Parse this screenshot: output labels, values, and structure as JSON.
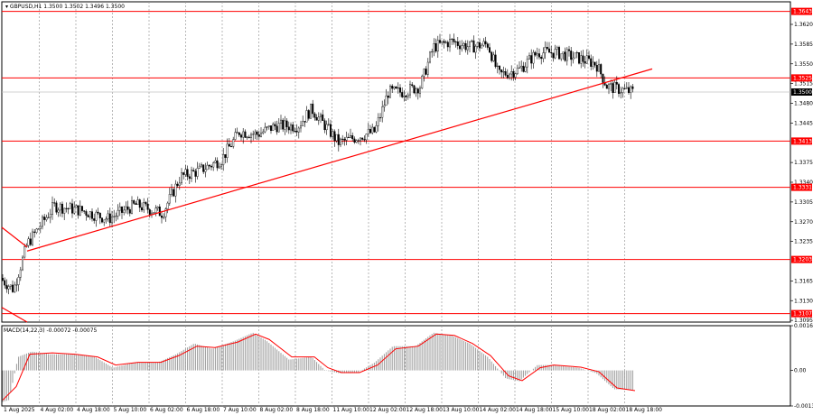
{
  "chart_data": [
    {
      "type": "candlestick",
      "header": "GBPUSD,H1  1.3500 1.3502 1.3496 1.3500",
      "x_tick_labels": [
        "1 Aug 2025",
        "4 Aug 02:00",
        "4 Aug 18:00",
        "5 Aug 10:00",
        "6 Aug 02:00",
        "6 Aug 18:00",
        "7 Aug 10:00",
        "8 Aug 02:00",
        "8 Aug 18:00",
        "11 Aug 10:00",
        "12 Aug 02:00",
        "12 Aug 18:00",
        "13 Aug 10:00",
        "14 Aug 02:00",
        "14 Aug 18:00",
        "15 Aug 10:00",
        "18 Aug 02:00",
        "18 Aug 18:00"
      ],
      "y_tick_labels": [
        "1.3620",
        "1.3585",
        "1.3550",
        "1.3515",
        "1.3480",
        "1.3445",
        "1.3375",
        "1.3340",
        "1.3305",
        "1.3270",
        "1.3235",
        "1.3165",
        "1.3130",
        "1.3095"
      ],
      "ylim": [
        1.3092,
        1.366
      ],
      "current_price": "1.3500",
      "levels": [
        {
          "value": 1.3643,
          "label": "1.3643"
        },
        {
          "value": 1.3525,
          "label": "1.3525"
        },
        {
          "value": 1.3413,
          "label": "1.3413"
        },
        {
          "value": 1.3331,
          "label": "1.3331"
        },
        {
          "value": 1.3203,
          "label": "1.3203"
        },
        {
          "value": 1.3107,
          "label": "1.3107"
        }
      ],
      "trendlines": [
        {
          "from": [
            28,
            1.3218
          ],
          "to": [
            720,
            1.3541
          ]
        },
        {
          "from": [
            0,
            1.326
          ],
          "to": [
            28,
            1.3225
          ]
        }
      ],
      "close_path": [
        [
          0,
          1.317
        ],
        [
          15,
          1.315
        ],
        [
          30,
          1.323
        ],
        [
          60,
          1.3298
        ],
        [
          90,
          1.329
        ],
        [
          120,
          1.3275
        ],
        [
          150,
          1.33
        ],
        [
          180,
          1.3285
        ],
        [
          200,
          1.335
        ],
        [
          220,
          1.336
        ],
        [
          245,
          1.338
        ],
        [
          265,
          1.343
        ],
        [
          285,
          1.3425
        ],
        [
          305,
          1.344
        ],
        [
          330,
          1.344
        ],
        [
          345,
          1.347
        ],
        [
          360,
          1.344
        ],
        [
          375,
          1.341
        ],
        [
          395,
          1.342
        ],
        [
          415,
          1.343
        ],
        [
          430,
          1.35
        ],
        [
          445,
          1.35
        ],
        [
          465,
          1.351
        ],
        [
          480,
          1.358
        ],
        [
          500,
          1.359
        ],
        [
          520,
          1.358
        ],
        [
          540,
          1.3585
        ],
        [
          552,
          1.353
        ],
        [
          575,
          1.354
        ],
        [
          595,
          1.357
        ],
        [
          615,
          1.357
        ],
        [
          640,
          1.356
        ],
        [
          660,
          1.355
        ],
        [
          672,
          1.351
        ],
        [
          685,
          1.3505
        ],
        [
          700,
          1.35
        ]
      ],
      "colors": {
        "levels": "#ff0000",
        "trend": "#ff0000",
        "candles": "#000000",
        "grid": "#9a9a9a",
        "label_bg": "#ff0000",
        "price_label_bg": "#000000"
      }
    },
    {
      "type": "histogram",
      "header": "MACD(14,22,3) -0.00072 -0.00075",
      "y_tick_labels": [
        "0.00166",
        "0.00",
        "-0.00132"
      ],
      "ylim": [
        -0.00132,
        0.00166
      ],
      "histogram": [
        [
          0,
          -0.0012
        ],
        [
          10,
          -0.0011
        ],
        [
          20,
          0.0005
        ],
        [
          35,
          0.0007
        ],
        [
          55,
          0.0006
        ],
        [
          80,
          0.0006
        ],
        [
          105,
          0.0005
        ],
        [
          125,
          0.0001
        ],
        [
          150,
          0.0003
        ],
        [
          175,
          0.0003
        ],
        [
          195,
          0.0006
        ],
        [
          215,
          0.001
        ],
        [
          235,
          0.0008
        ],
        [
          260,
          0.0011
        ],
        [
          280,
          0.0014
        ],
        [
          295,
          0.0011
        ],
        [
          320,
          0.0004
        ],
        [
          345,
          0.0005
        ],
        [
          360,
          0.0
        ],
        [
          375,
          -0.0001
        ],
        [
          395,
          -0.0001
        ],
        [
          415,
          0.0003
        ],
        [
          435,
          0.0009
        ],
        [
          460,
          0.0009
        ],
        [
          480,
          0.0014
        ],
        [
          500,
          0.0013
        ],
        [
          520,
          0.001
        ],
        [
          540,
          0.0005
        ],
        [
          560,
          -0.0003
        ],
        [
          575,
          -0.0004
        ],
        [
          595,
          0.0002
        ],
        [
          610,
          0.0002
        ],
        [
          640,
          0.0001
        ],
        [
          660,
          -0.0001
        ],
        [
          680,
          -0.0007
        ],
        [
          700,
          -0.00072
        ]
      ],
      "signal": [
        [
          0,
          -0.0011
        ],
        [
          15,
          -0.0006
        ],
        [
          30,
          0.0006
        ],
        [
          55,
          0.00065
        ],
        [
          80,
          0.0006
        ],
        [
          105,
          0.0005
        ],
        [
          125,
          0.0002
        ],
        [
          150,
          0.0003
        ],
        [
          175,
          0.0003
        ],
        [
          195,
          0.00055
        ],
        [
          215,
          0.0009
        ],
        [
          235,
          0.00085
        ],
        [
          260,
          0.00105
        ],
        [
          280,
          0.00135
        ],
        [
          295,
          0.00115
        ],
        [
          320,
          0.0005
        ],
        [
          345,
          0.0005
        ],
        [
          360,
          0.0001
        ],
        [
          375,
          -8e-05
        ],
        [
          395,
          -8e-05
        ],
        [
          415,
          0.0002
        ],
        [
          435,
          0.0008
        ],
        [
          460,
          0.0009
        ],
        [
          480,
          0.00135
        ],
        [
          500,
          0.0013
        ],
        [
          520,
          0.001
        ],
        [
          540,
          0.00055
        ],
        [
          560,
          -0.0002
        ],
        [
          575,
          -0.00038
        ],
        [
          595,
          0.0001
        ],
        [
          610,
          0.0002
        ],
        [
          640,
          0.00012
        ],
        [
          660,
          -5e-05
        ],
        [
          680,
          -0.00065
        ],
        [
          700,
          -0.00075
        ]
      ],
      "colors": {
        "histogram": "#9a9a9a",
        "signal": "#ff0000"
      }
    }
  ]
}
